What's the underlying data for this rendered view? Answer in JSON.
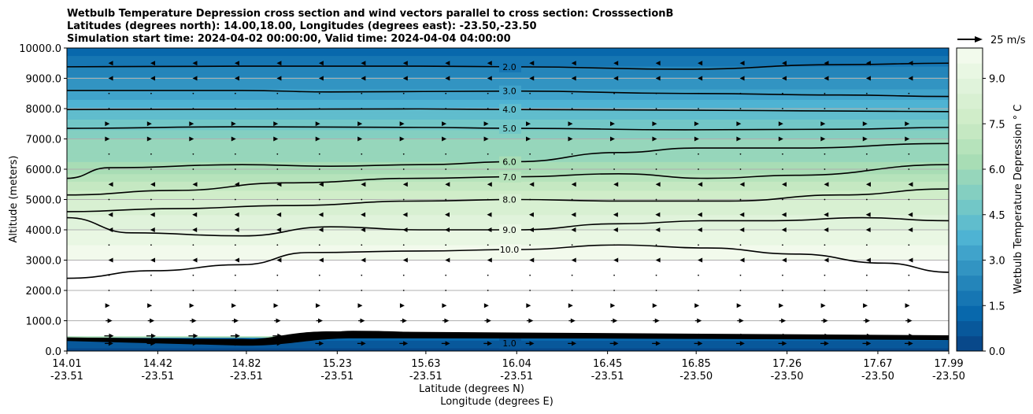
{
  "chart_data": {
    "type": "heatmap",
    "subtype": "filled contour cross section with wind vectors",
    "title_lines": [
      "Wetbulb Temperature Depression cross section and wind vectors parallel to cross section: CrosssectionB",
      "Latitudes (degrees north): 14.00,18.00, Longitudes (degrees east): -23.50,-23.50",
      "Simulation start time: 2024-04-02 00:00:00, Valid time: 2024-04-04 04:00:00"
    ],
    "ylabel": "Altitude (meters)",
    "xlabel": "Latitude (degrees N)",
    "xlabel2": "Longitude (degrees E)",
    "ylim": [
      0,
      10000
    ],
    "xlim": [
      14.01,
      17.99
    ],
    "yticks": [
      "0.0",
      "1000.0",
      "2000.0",
      "3000.0",
      "4000.0",
      "5000.0",
      "6000.0",
      "7000.0",
      "8000.0",
      "9000.0",
      "10000.0"
    ],
    "xticks": [
      {
        "lat": "14.01",
        "lon": "-23.51"
      },
      {
        "lat": "14.42",
        "lon": "-23.51"
      },
      {
        "lat": "14.82",
        "lon": "-23.51"
      },
      {
        "lat": "15.23",
        "lon": "-23.51"
      },
      {
        "lat": "15.63",
        "lon": "-23.51"
      },
      {
        "lat": "16.04",
        "lon": "-23.51"
      },
      {
        "lat": "16.45",
        "lon": "-23.51"
      },
      {
        "lat": "16.85",
        "lon": "-23.50"
      },
      {
        "lat": "17.26",
        "lon": "-23.50"
      },
      {
        "lat": "17.67",
        "lon": "-23.50"
      },
      {
        "lat": "17.99",
        "lon": "-23.50"
      }
    ],
    "grid": true,
    "colorbar": {
      "label": "Wetbulb Temperature Depression $^\\circ$C",
      "label_text": "Wetbulb Temperature Depression ° C",
      "ticks": [
        "0.0",
        "1.5",
        "3.0",
        "4.5",
        "6.0",
        "7.5",
        "9.0"
      ],
      "range": [
        0,
        10
      ],
      "step": 0.5,
      "cmap": [
        "#084081",
        "#0868ac",
        "#2b8cbe",
        "#4eb3d3",
        "#7bccc4",
        "#a8ddb5",
        "#ccebc5",
        "#e0f3db",
        "#f7fcf0"
      ]
    },
    "profile": {
      "altitude": [
        0,
        300,
        450,
        500,
        2900,
        3000,
        3500,
        4000,
        4500,
        5000,
        5500,
        6000,
        6500,
        7000,
        7500,
        8000,
        8500,
        9000,
        9500,
        10000
      ],
      "value": [
        0.3,
        0.8,
        1.5,
        10.5,
        10.5,
        9.9,
        9.5,
        9.0,
        8.5,
        8.0,
        7.2,
        6.2,
        5.8,
        5.5,
        4.7,
        4.0,
        3.2,
        2.6,
        1.8,
        1.2
      ]
    },
    "contours": [
      {
        "level": "2.0",
        "lat": [
          14.01,
          14.8,
          15.6,
          16.04,
          16.8,
          17.5,
          17.99
        ],
        "alt": [
          9380,
          9400,
          9400,
          9380,
          9300,
          9450,
          9500
        ]
      },
      {
        "level": "3.0",
        "lat": [
          14.01,
          14.8,
          15.2,
          16.04,
          16.8,
          17.5,
          17.99
        ],
        "alt": [
          8600,
          8600,
          8550,
          8580,
          8500,
          8450,
          8400
        ]
      },
      {
        "level": "4.0",
        "lat": [
          14.01,
          14.8,
          15.6,
          16.04,
          16.8,
          17.5,
          17.99
        ],
        "alt": [
          7970,
          7980,
          7990,
          7970,
          7950,
          7920,
          7900
        ]
      },
      {
        "level": "5.0",
        "lat": [
          14.01,
          14.8,
          15.6,
          16.04,
          16.8,
          17.5,
          17.99
        ],
        "alt": [
          7350,
          7400,
          7380,
          7350,
          7300,
          7320,
          7380
        ]
      },
      {
        "level": "6.0",
        "lat": [
          14.01,
          14.2,
          14.8,
          15.2,
          15.6,
          16.04,
          16.5,
          16.85,
          17.3,
          17.99
        ],
        "alt": [
          5700,
          6050,
          6150,
          6100,
          6150,
          6250,
          6550,
          6700,
          6700,
          6850
        ]
      },
      {
        "level": "7.0",
        "lat": [
          14.01,
          14.5,
          15.0,
          15.6,
          16.04,
          16.5,
          16.9,
          17.3,
          17.99
        ],
        "alt": [
          5150,
          5300,
          5550,
          5700,
          5750,
          5850,
          5700,
          5800,
          6150
        ]
      },
      {
        "level": "8.0",
        "lat": [
          14.01,
          14.5,
          15.0,
          15.6,
          16.04,
          16.5,
          17.0,
          17.5,
          17.99
        ],
        "alt": [
          4600,
          4700,
          4800,
          4950,
          5000,
          4950,
          4950,
          5150,
          5350
        ]
      },
      {
        "level": "9.0",
        "lat": [
          14.01,
          14.3,
          14.8,
          15.2,
          15.6,
          16.04,
          16.5,
          16.9,
          17.2,
          17.6,
          17.99
        ],
        "alt": [
          4400,
          3900,
          3800,
          4100,
          4000,
          4000,
          4200,
          4300,
          4300,
          4400,
          4300
        ]
      },
      {
        "level": "10.0",
        "lat": [
          14.01,
          14.4,
          14.8,
          15.1,
          15.6,
          16.04,
          16.5,
          16.9,
          17.3,
          17.7,
          17.99
        ],
        "alt": [
          2400,
          2650,
          2850,
          3250,
          3300,
          3350,
          3500,
          3400,
          3200,
          2900,
          2600
        ]
      },
      {
        "level": "1.0",
        "lat": [
          14.01,
          14.8,
          15.0,
          15.3,
          16.04,
          16.8,
          17.5,
          17.99
        ],
        "alt": [
          420,
          380,
          300,
          650,
          450,
          420,
          400,
          380
        ]
      }
    ],
    "wind_vectors": {
      "reference": "25 m/s",
      "reference_speed": 25,
      "rows": [
        {
          "alt": 250,
          "u": 9
        },
        {
          "alt": 500,
          "u": 10
        },
        {
          "alt": 1000,
          "u": 7
        },
        {
          "alt": 1500,
          "u": 2
        },
        {
          "alt": 2000,
          "u": 1
        },
        {
          "alt": 2500,
          "u": -1
        },
        {
          "alt": 3000,
          "u": -1.5
        },
        {
          "alt": 3500,
          "u": 0.5
        },
        {
          "alt": 4000,
          "u": -2
        },
        {
          "alt": 4500,
          "u": -2
        },
        {
          "alt": 5000,
          "u": 0.5
        },
        {
          "alt": 5500,
          "u": -1.5
        },
        {
          "alt": 6000,
          "u": 0.5
        },
        {
          "alt": 6500,
          "u": 0.5
        },
        {
          "alt": 7000,
          "u": 1.5
        },
        {
          "alt": 7500,
          "u": 1.5
        },
        {
          "alt": 8000,
          "u": -1
        },
        {
          "alt": 8500,
          "u": -1
        },
        {
          "alt": 9000,
          "u": -1.5
        },
        {
          "alt": 9500,
          "u": -1.5
        }
      ]
    }
  }
}
